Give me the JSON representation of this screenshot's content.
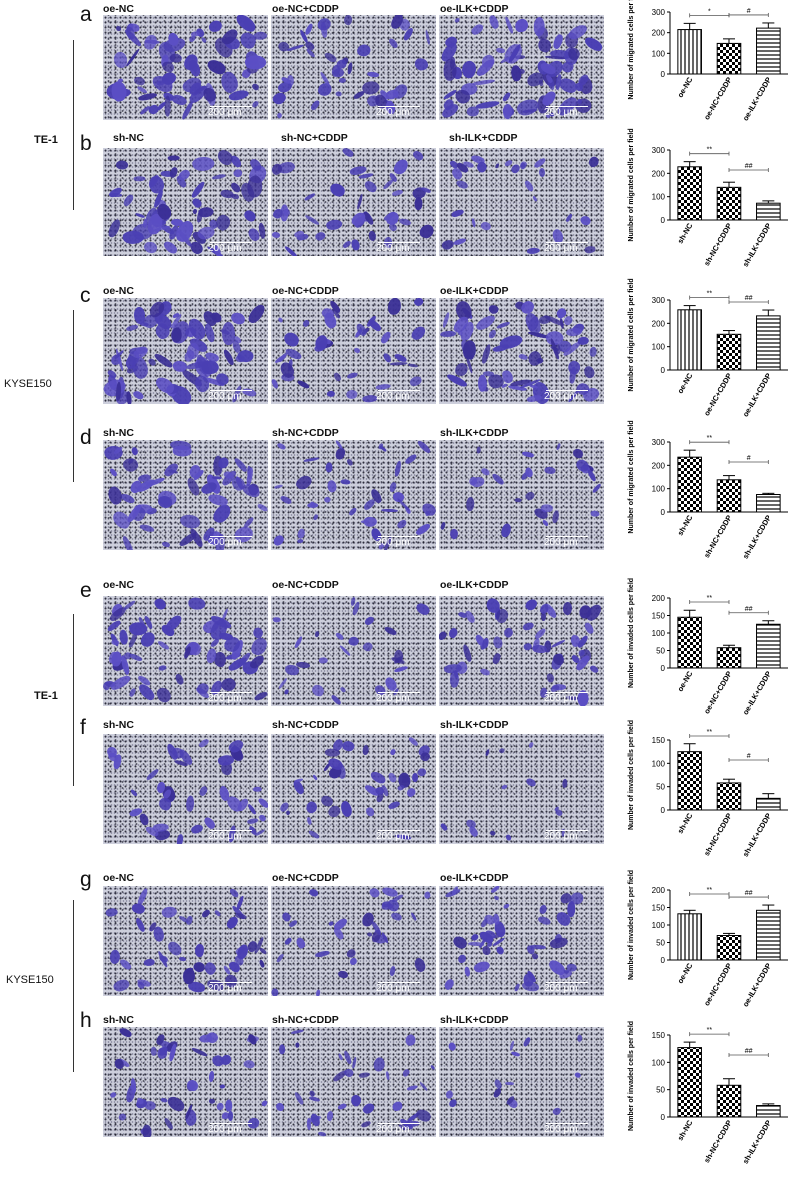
{
  "side_groups": [
    {
      "label": "TE-1",
      "bold": true
    },
    {
      "label": "KYSE150",
      "bold": false
    },
    {
      "label": "TE-1",
      "bold": true
    },
    {
      "label": "KYSE150",
      "bold": false
    }
  ],
  "panels": [
    {
      "letter": "a",
      "images": [
        "oe-NC",
        "oe-NC+CDDP",
        "oe-ILK+CDDP"
      ],
      "scale": "200 μm"
    },
    {
      "letter": "b",
      "images": [
        "sh-NC",
        "sh-NC+CDDP",
        "sh-ILK+CDDP"
      ],
      "scale": "200 μm"
    },
    {
      "letter": "c",
      "images": [
        "oe-NC",
        "oe-NC+CDDP",
        "oe-ILK+CDDP"
      ],
      "scale": "200 μm"
    },
    {
      "letter": "d",
      "images": [
        "sh-NC",
        "sh-NC+CDDP",
        "sh-ILK+CDDP"
      ],
      "scale": "200 μm"
    },
    {
      "letter": "e",
      "images": [
        "oe-NC",
        "oe-NC+CDDP",
        "oe-ILK+CDDP"
      ],
      "scale": "200 μm"
    },
    {
      "letter": "f",
      "images": [
        "sh-NC",
        "sh-NC+CDDP",
        "sh-ILK+CDDP"
      ],
      "scale": "200 μm"
    },
    {
      "letter": "g",
      "images": [
        "oe-NC",
        "oe-NC+CDDP",
        "oe-ILK+CDDP"
      ],
      "scale": "200 μm"
    },
    {
      "letter": "h",
      "images": [
        "sh-NC",
        "sh-NC+CDDP",
        "sh-ILK+CDDP"
      ],
      "scale": "200 μm"
    }
  ],
  "chart_data": [
    {
      "type": "bar",
      "panel": "a",
      "ylabel": "Number of migrated cells per field",
      "categories": [
        "oe-NC",
        "oe-NC+CDDP",
        "oe-ILK+CDDP"
      ],
      "values": [
        215,
        148,
        222
      ],
      "errors": [
        30,
        22,
        25
      ],
      "ylim": [
        0,
        300
      ],
      "yticks": [
        "0",
        "100",
        "200",
        "300"
      ],
      "fills": [
        "vlines",
        "checker",
        "hlines"
      ],
      "sig": [
        {
          "from": 0,
          "to": 1,
          "label": "*"
        },
        {
          "from": 1,
          "to": 2,
          "label": "#"
        }
      ]
    },
    {
      "type": "bar",
      "panel": "b",
      "ylabel": "Number of migrated cells per field",
      "categories": [
        "sh-NC",
        "sh-NC+CDDP",
        "sh-ILK+CDDP"
      ],
      "values": [
        228,
        140,
        72
      ],
      "errors": [
        22,
        22,
        10
      ],
      "ylim": [
        0,
        300
      ],
      "yticks": [
        "0",
        "100",
        "200",
        "300"
      ],
      "fills": [
        "checker",
        "checker",
        "hlines"
      ],
      "sig": [
        {
          "from": 0,
          "to": 1,
          "label": "**"
        },
        {
          "from": 1,
          "to": 2,
          "label": "##"
        }
      ]
    },
    {
      "type": "bar",
      "panel": "c",
      "ylabel": "Number of migrated cells per field",
      "categories": [
        "oe-NC",
        "oe-NC+CDDP",
        "oe-ILK+CDDP"
      ],
      "values": [
        258,
        153,
        232
      ],
      "errors": [
        18,
        16,
        25
      ],
      "ylim": [
        0,
        300
      ],
      "yticks": [
        "0",
        "100",
        "200",
        "300"
      ],
      "fills": [
        "vlines",
        "checker",
        "hlines"
      ],
      "sig": [
        {
          "from": 0,
          "to": 1,
          "label": "**"
        },
        {
          "from": 1,
          "to": 2,
          "label": "##"
        }
      ]
    },
    {
      "type": "bar",
      "panel": "d",
      "ylabel": "Number of migrated cells per field",
      "categories": [
        "sh-NC",
        "sh-NC+CDDP",
        "sh-ILK+CDDP"
      ],
      "values": [
        235,
        138,
        75
      ],
      "errors": [
        30,
        18,
        5
      ],
      "ylim": [
        0,
        300
      ],
      "yticks": [
        "0",
        "100",
        "200",
        "300"
      ],
      "fills": [
        "checker",
        "checker",
        "hlines"
      ],
      "sig": [
        {
          "from": 0,
          "to": 1,
          "label": "**"
        },
        {
          "from": 1,
          "to": 2,
          "label": "#"
        }
      ]
    },
    {
      "type": "bar",
      "panel": "e",
      "ylabel": "Number of invaded cells per field",
      "categories": [
        "oe-NC",
        "oe-NC+CDDP",
        "oe-ILK+CDDP"
      ],
      "values": [
        145,
        58,
        125
      ],
      "errors": [
        20,
        7,
        10
      ],
      "ylim": [
        0,
        200
      ],
      "yticks": [
        "0",
        "50",
        "100",
        "150",
        "200"
      ],
      "fills": [
        "checker",
        "checker",
        "hlines"
      ],
      "sig": [
        {
          "from": 0,
          "to": 1,
          "label": "**"
        },
        {
          "from": 1,
          "to": 2,
          "label": "##"
        }
      ]
    },
    {
      "type": "bar",
      "panel": "f",
      "ylabel": "Number of invaded cells per field",
      "categories": [
        "sh-NC",
        "sh-NC+CDDP",
        "sh-ILK+CDDP"
      ],
      "values": [
        125,
        58,
        25
      ],
      "errors": [
        17,
        8,
        10
      ],
      "ylim": [
        0,
        150
      ],
      "yticks": [
        "0",
        "50",
        "100",
        "150"
      ],
      "fills": [
        "checker",
        "checker",
        "hlines"
      ],
      "sig": [
        {
          "from": 0,
          "to": 1,
          "label": "**"
        },
        {
          "from": 1,
          "to": 2,
          "label": "#"
        }
      ]
    },
    {
      "type": "bar",
      "panel": "g",
      "ylabel": "Number of invaded cells per field",
      "categories": [
        "oe-NC",
        "oe-NC+CDDP",
        "oe-ILK+CDDP"
      ],
      "values": [
        132,
        70,
        142
      ],
      "errors": [
        10,
        6,
        15
      ],
      "ylim": [
        0,
        200
      ],
      "yticks": [
        "0",
        "50",
        "100",
        "150",
        "200"
      ],
      "fills": [
        "vlines",
        "checker",
        "hlines"
      ],
      "sig": [
        {
          "from": 0,
          "to": 1,
          "label": "**"
        },
        {
          "from": 1,
          "to": 2,
          "label": "##"
        }
      ]
    },
    {
      "type": "bar",
      "panel": "h",
      "ylabel": "Number of invaded cells per field",
      "categories": [
        "sh-NC",
        "sh-NC+CDDP",
        "sh-ILK+CDDP"
      ],
      "values": [
        127,
        58,
        21
      ],
      "errors": [
        10,
        12,
        3
      ],
      "ylim": [
        0,
        150
      ],
      "yticks": [
        "0",
        "50",
        "100",
        "150"
      ],
      "fills": [
        "checker",
        "checker",
        "hlines"
      ],
      "sig": [
        {
          "from": 0,
          "to": 1,
          "label": "**"
        },
        {
          "from": 1,
          "to": 2,
          "label": "##"
        }
      ]
    }
  ]
}
